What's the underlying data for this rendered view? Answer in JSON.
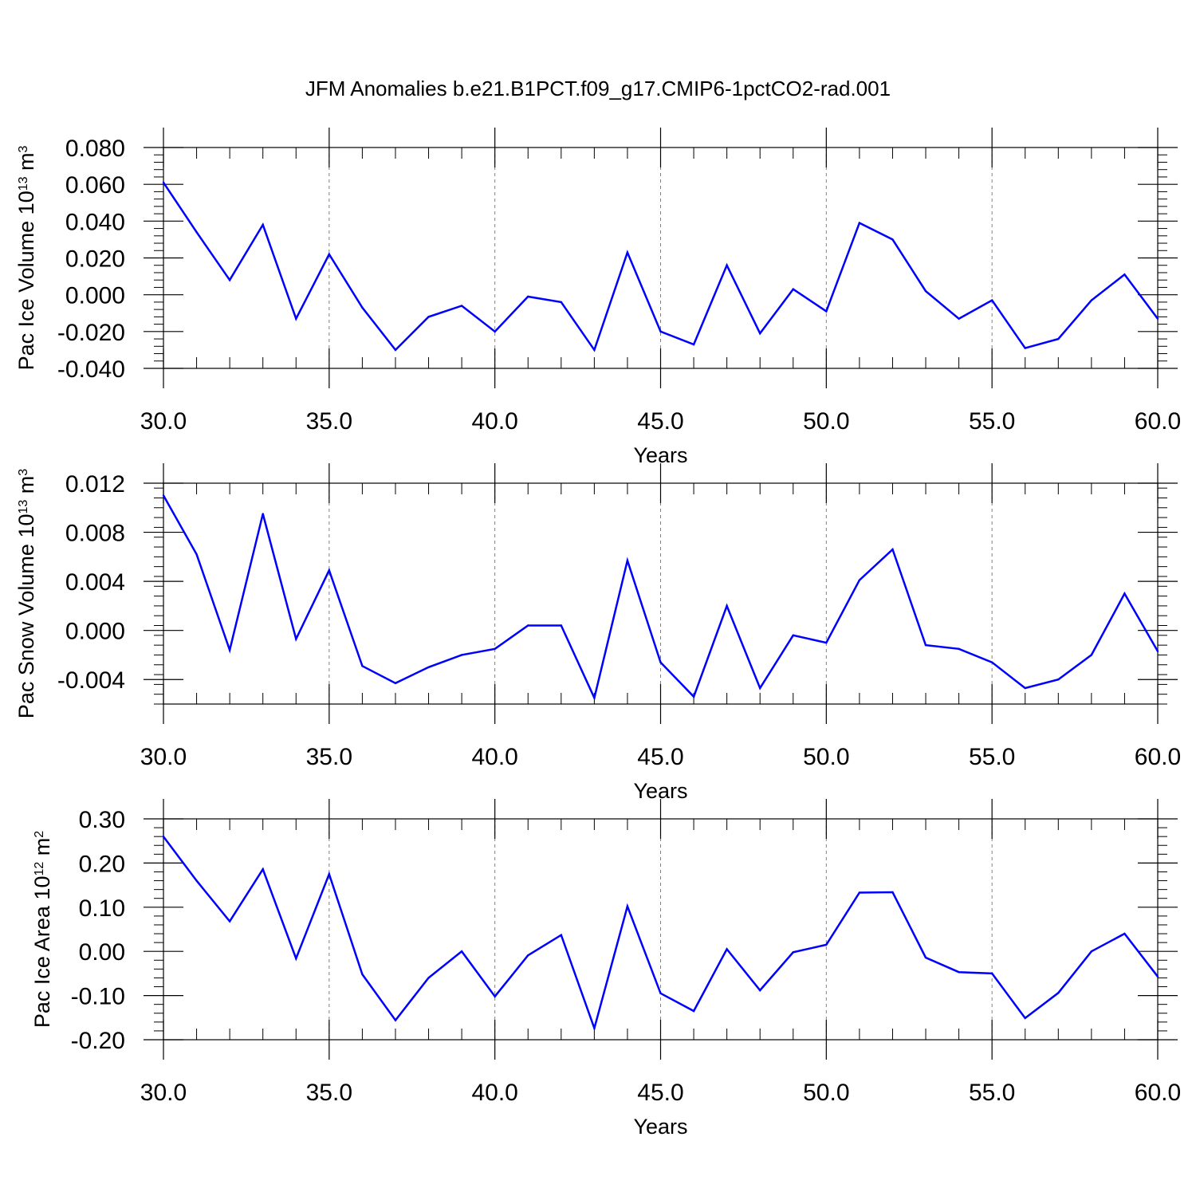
{
  "title": "JFM Anomalies b.e21.B1PCT.f09_g17.CMIP6-1pctCO2-rad.001",
  "colors": {
    "series": "#0000ff",
    "axis": "#000000",
    "grid": "#808080"
  },
  "chart_data": [
    {
      "type": "line",
      "xlabel": "Years",
      "ylabel_parts": {
        "main": "Pac Ice Volume 10",
        "exp": "13",
        "unit": " m",
        "unit_exp": "3"
      },
      "xlim": [
        30,
        60
      ],
      "ylim": [
        -0.04,
        0.08
      ],
      "xticks": [
        "30.0",
        "35.0",
        "40.0",
        "45.0",
        "50.0",
        "55.0",
        "60.0"
      ],
      "yticks": [
        "-0.040",
        "-0.020",
        "0.000",
        "0.020",
        "0.040",
        "0.060",
        "0.080"
      ],
      "x": [
        30,
        31,
        32,
        33,
        34,
        35,
        36,
        37,
        38,
        39,
        40,
        41,
        42,
        43,
        44,
        45,
        46,
        47,
        48,
        49,
        50,
        51,
        52,
        53,
        54,
        55,
        56,
        57,
        58,
        59,
        60
      ],
      "values": [
        0.061,
        0.034,
        0.008,
        0.038,
        -0.013,
        0.022,
        -0.007,
        -0.03,
        -0.012,
        -0.006,
        -0.02,
        -0.001,
        -0.004,
        -0.03,
        0.023,
        -0.02,
        -0.027,
        0.016,
        -0.021,
        0.003,
        -0.009,
        0.039,
        0.03,
        0.002,
        -0.013,
        -0.003,
        -0.029,
        -0.024,
        -0.003,
        0.011,
        -0.013
      ],
      "grid": "dashed vertical at major x ticks"
    },
    {
      "type": "line",
      "xlabel": "Years",
      "ylabel_parts": {
        "main": "Pac Snow Volume 10",
        "exp": "13",
        "unit": " m",
        "unit_exp": "3"
      },
      "xlim": [
        30,
        60
      ],
      "ylim": [
        -0.006,
        0.012
      ],
      "xticks": [
        "30.0",
        "35.0",
        "40.0",
        "45.0",
        "50.0",
        "55.0",
        "60.0"
      ],
      "yticks": [
        "-0.004",
        "0.000",
        "0.004",
        "0.008",
        "0.012"
      ],
      "ytick_values": [
        -0.004,
        0.0,
        0.004,
        0.008,
        0.012
      ],
      "x": [
        30,
        31,
        32,
        33,
        34,
        35,
        36,
        37,
        38,
        39,
        40,
        41,
        42,
        43,
        44,
        45,
        46,
        47,
        48,
        49,
        50,
        51,
        52,
        53,
        54,
        55,
        56,
        57,
        58,
        59,
        60
      ],
      "values": [
        0.011,
        0.0062,
        -0.0016,
        0.0095,
        -0.0007,
        0.0049,
        -0.0029,
        -0.0043,
        -0.003,
        -0.002,
        -0.0015,
        0.0004,
        0.0004,
        -0.0055,
        0.0057,
        -0.0026,
        -0.0054,
        0.002,
        -0.0047,
        -0.0004,
        -0.001,
        0.0041,
        0.0066,
        -0.0012,
        -0.0015,
        -0.0026,
        -0.0047,
        -0.004,
        -0.002,
        0.003,
        -0.0017
      ],
      "grid": "dashed vertical at major x ticks"
    },
    {
      "type": "line",
      "xlabel": "Years",
      "ylabel_parts": {
        "main": "Pac Ice Area 10",
        "exp": "12",
        "unit": " m",
        "unit_exp": "2"
      },
      "xlim": [
        30,
        60
      ],
      "ylim": [
        -0.2,
        0.3
      ],
      "xticks": [
        "30.0",
        "35.0",
        "40.0",
        "45.0",
        "50.0",
        "55.0",
        "60.0"
      ],
      "yticks": [
        "-0.20",
        "-0.10",
        "0.00",
        "0.10",
        "0.20",
        "0.30"
      ],
      "x": [
        30,
        31,
        32,
        33,
        34,
        35,
        36,
        37,
        38,
        39,
        40,
        41,
        42,
        43,
        44,
        45,
        46,
        47,
        48,
        49,
        50,
        51,
        52,
        53,
        54,
        55,
        56,
        57,
        58,
        59,
        60
      ],
      "values": [
        0.26,
        0.16,
        0.068,
        0.186,
        -0.016,
        0.175,
        -0.052,
        -0.156,
        -0.06,
        0.0,
        -0.102,
        -0.009,
        0.037,
        -0.174,
        0.102,
        -0.095,
        -0.135,
        0.005,
        -0.088,
        -0.002,
        0.015,
        0.133,
        0.134,
        -0.014,
        -0.047,
        -0.05,
        -0.151,
        -0.094,
        0.0,
        0.04,
        -0.057
      ],
      "grid": "dashed vertical at major x ticks"
    }
  ]
}
